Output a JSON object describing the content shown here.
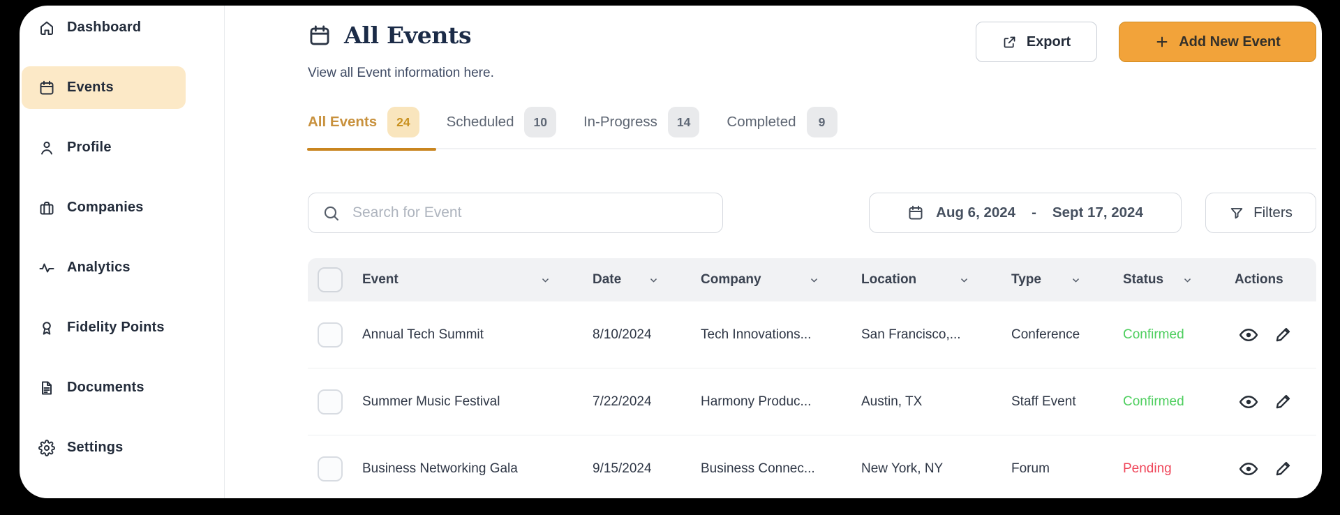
{
  "colors": {
    "frame_background": "#000000",
    "panel_background": "#ffffff",
    "accent_orange": "#F2A33A",
    "active_tab_text": "#C8913D",
    "active_tab_underline": "#C9851F",
    "active_sidebar_item_bg": "#FCE9C7",
    "title_navy": "#1B2B47",
    "confirmed": "#4CCE5D",
    "pending": "#EF4458"
  },
  "sidebar": {
    "items": [
      {
        "label": "Dashboard",
        "icon": "home",
        "active": false
      },
      {
        "label": "Events",
        "icon": "calendar",
        "active": true
      },
      {
        "label": "Profile",
        "icon": "person",
        "active": false
      },
      {
        "label": "Companies",
        "icon": "briefcase",
        "active": false
      },
      {
        "label": "Analytics",
        "icon": "activity",
        "active": false
      },
      {
        "label": "Fidelity Points",
        "icon": "award",
        "active": false
      },
      {
        "label": "Documents",
        "icon": "document",
        "active": false
      },
      {
        "label": "Settings",
        "icon": "gear",
        "active": false
      }
    ]
  },
  "header": {
    "title": "All Events",
    "subtitle": "View all Event information here.",
    "export_label": "Export",
    "add_event_label": "Add New Event"
  },
  "tabs": {
    "items": [
      {
        "label": "All Events",
        "count": "24",
        "active": true
      },
      {
        "label": "Scheduled",
        "count": "10",
        "active": false
      },
      {
        "label": "In-Progress",
        "count": "14",
        "active": false
      },
      {
        "label": "Completed",
        "count": "9",
        "active": false
      }
    ]
  },
  "toolbar": {
    "search_placeholder": "Search for Event",
    "date_start": "Aug 6, 2024",
    "date_separator": "-",
    "date_end": "Sept 17, 2024",
    "filters_label": "Filters"
  },
  "table": {
    "columns": [
      {
        "key": "event",
        "label": "Event",
        "sortable": true
      },
      {
        "key": "date",
        "label": "Date",
        "sortable": true
      },
      {
        "key": "company",
        "label": "Company",
        "sortable": true
      },
      {
        "key": "location",
        "label": "Location",
        "sortable": true
      },
      {
        "key": "type",
        "label": "Type",
        "sortable": true
      },
      {
        "key": "status",
        "label": "Status",
        "sortable": true
      },
      {
        "key": "actions",
        "label": "Actions",
        "sortable": false
      }
    ],
    "rows": [
      {
        "event": "Annual Tech Summit",
        "date": "8/10/2024",
        "company": "Tech Innovations...",
        "location": "San Francisco,...",
        "type": "Conference",
        "status": "Confirmed",
        "status_key": "confirmed"
      },
      {
        "event": "Summer Music Festival",
        "date": "7/22/2024",
        "company": "Harmony Produc...",
        "location": "Austin, TX",
        "type": "Staff Event",
        "status": "Confirmed",
        "status_key": "confirmed"
      },
      {
        "event": "Business Networking Gala",
        "date": "9/15/2024",
        "company": "Business Connec...",
        "location": "New York, NY",
        "type": "Forum",
        "status": "Pending",
        "status_key": "pending"
      }
    ]
  }
}
